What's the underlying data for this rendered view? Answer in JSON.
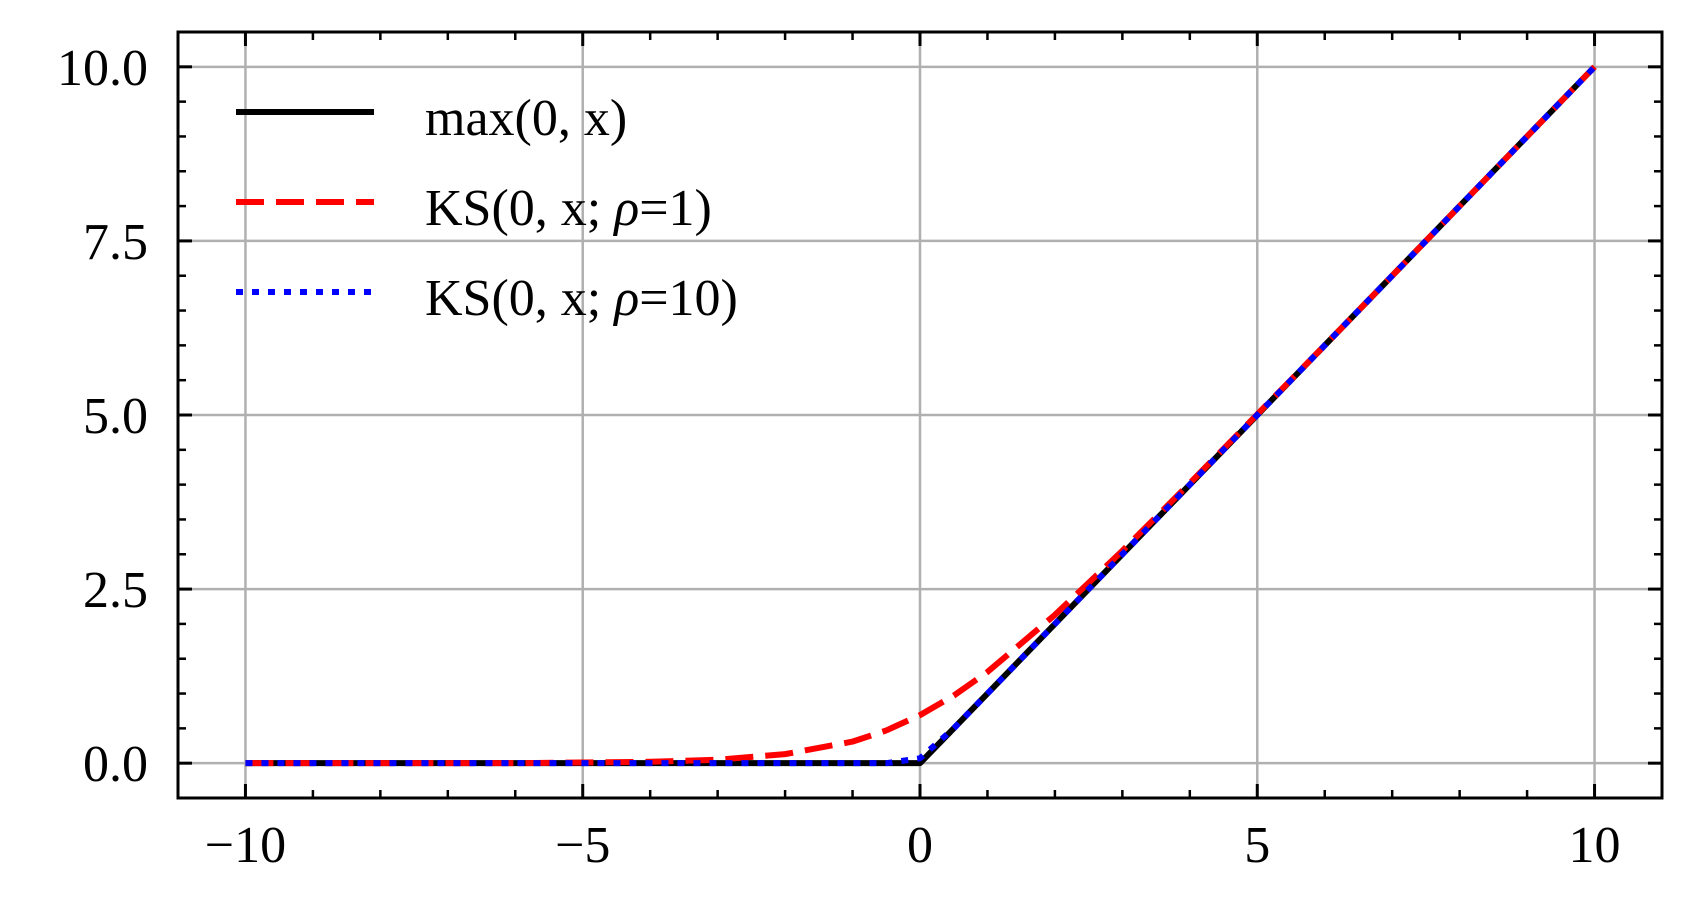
{
  "chart_data": {
    "type": "line",
    "title": "",
    "xlabel": "",
    "ylabel": "",
    "xlim": [
      -11,
      11
    ],
    "ylim": [
      -0.5,
      10.5
    ],
    "grid": true,
    "legend_position": "top-left",
    "x_ticks": [
      -10,
      -5,
      0,
      5,
      10
    ],
    "x_tick_labels": [
      "−10",
      "−5",
      "0",
      "5",
      "10"
    ],
    "y_ticks": [
      0.0,
      2.5,
      5.0,
      7.5,
      10.0
    ],
    "y_tick_labels": [
      "0.0",
      "2.5",
      "5.0",
      "7.5",
      "10.0"
    ],
    "series": [
      {
        "name": "max(0, x)",
        "legend_parts": [
          "max(0, x)",
          "",
          ""
        ],
        "style": "solid",
        "color": "#000000",
        "x": [
          -10,
          -8,
          -6,
          -4,
          -3,
          -2,
          -1,
          -0.5,
          0,
          0.5,
          1,
          2,
          3,
          4,
          5,
          6,
          7,
          8,
          9,
          10
        ],
        "y": [
          0.0,
          0.0,
          0.0,
          0.0,
          0.0,
          0.0,
          0.0,
          0.0,
          0.0,
          0.5,
          1.0,
          2.0,
          3.0,
          4.0,
          5.0,
          6.0,
          7.0,
          8.0,
          9.0,
          10.0
        ]
      },
      {
        "name": "KS(0, x; ρ=1)",
        "legend_parts": [
          "KS(0, x; ",
          "ρ",
          "=1)"
        ],
        "style": "dashed",
        "color": "#ff0000",
        "x": [
          -10,
          -8,
          -6,
          -4,
          -3,
          -2,
          -1,
          -0.5,
          0,
          0.5,
          1,
          2,
          3,
          4,
          5,
          6,
          7,
          8,
          9,
          10
        ],
        "y": [
          0.0,
          0.0,
          0.0,
          0.02,
          0.05,
          0.13,
          0.31,
          0.47,
          0.69,
          0.97,
          1.31,
          2.13,
          3.05,
          4.02,
          5.01,
          6.0,
          7.0,
          8.0,
          9.0,
          10.0
        ]
      },
      {
        "name": "KS(0, x; ρ=10)",
        "legend_parts": [
          "KS(0, x; ",
          "ρ",
          "=10)"
        ],
        "style": "dotted",
        "color": "#0000ff",
        "x": [
          -10,
          -8,
          -6,
          -4,
          -3,
          -2,
          -1,
          -0.5,
          0,
          0.5,
          1,
          2,
          3,
          4,
          5,
          6,
          7,
          8,
          9,
          10
        ],
        "y": [
          0.0,
          0.0,
          0.0,
          0.0,
          0.0,
          0.0,
          0.0,
          0.0,
          0.07,
          0.5,
          1.0,
          2.0,
          3.0,
          4.0,
          5.0,
          6.0,
          7.0,
          8.0,
          9.0,
          10.0
        ]
      }
    ]
  }
}
